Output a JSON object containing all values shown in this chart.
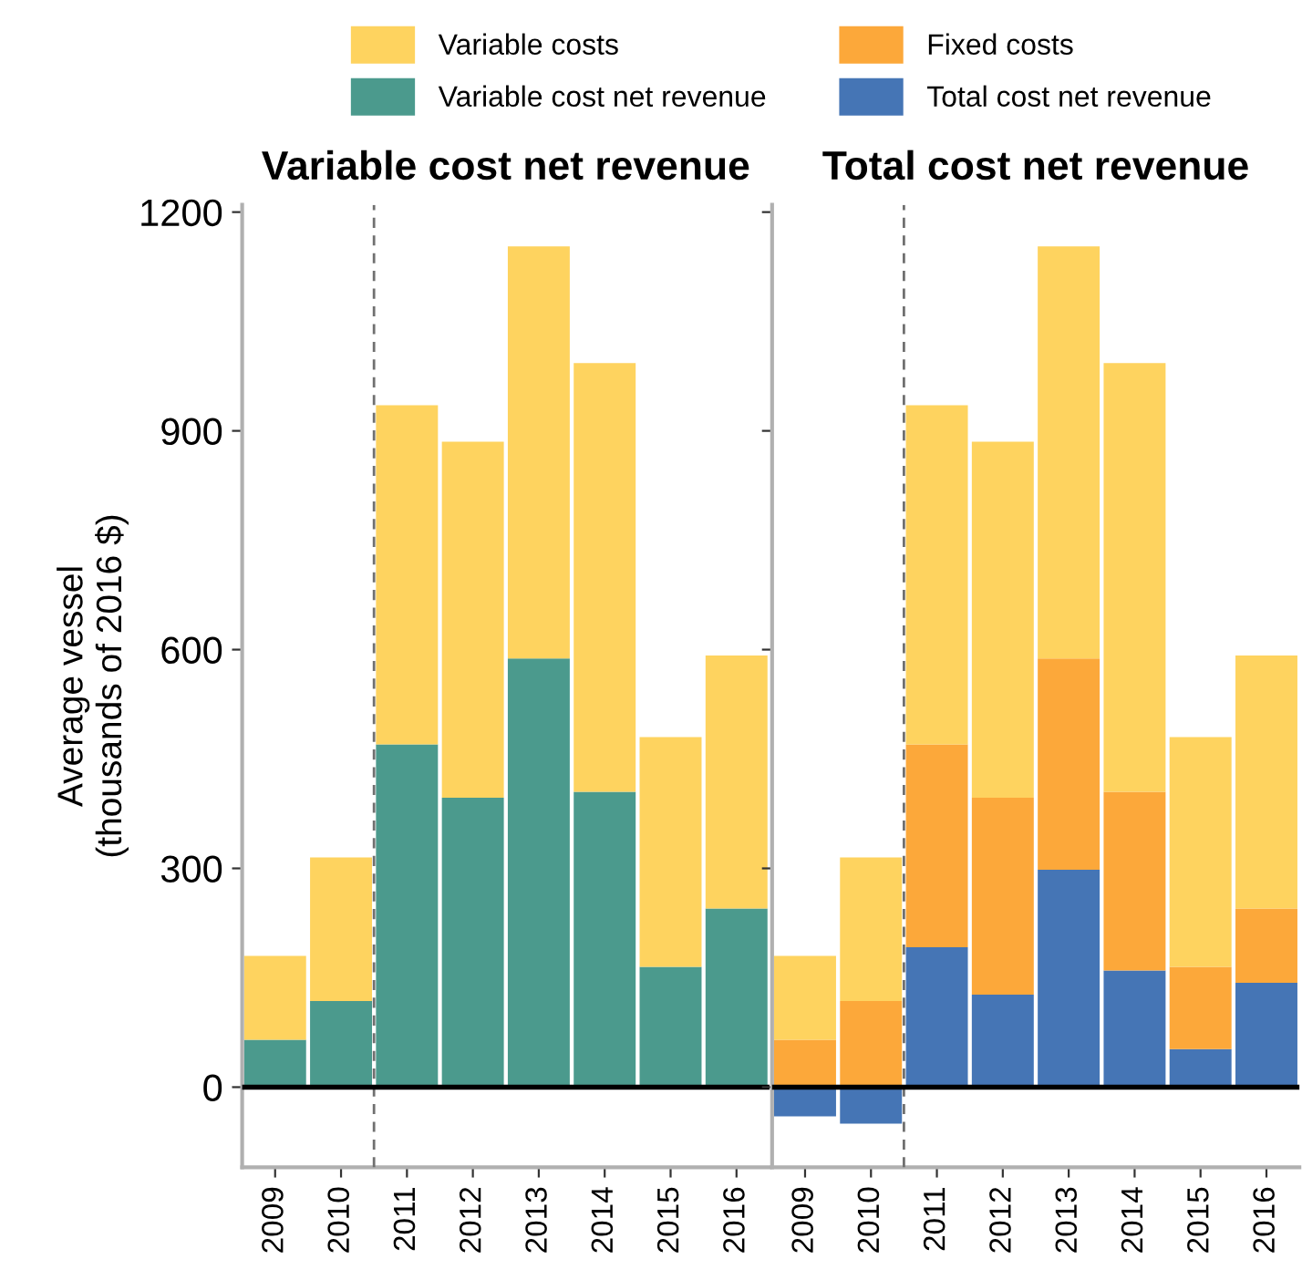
{
  "chart_data": [
    {
      "type": "bar",
      "stacked": true,
      "title": "Variable cost net revenue",
      "ylabel": "Average vessel\n(thousands of 2016 $)",
      "categories": [
        "2009",
        "2010",
        "2011",
        "2012",
        "2013",
        "2014",
        "2015",
        "2016"
      ],
      "series": [
        {
          "name": "Variable cost net revenue",
          "color": "#4b9a8d",
          "values": [
            65,
            118,
            470,
            397,
            588,
            405,
            165,
            245
          ]
        },
        {
          "name": "Variable costs",
          "color": "#fed35f",
          "values": [
            115,
            197,
            465,
            488,
            565,
            588,
            315,
            347
          ]
        }
      ],
      "ylim": [
        -110,
        1210
      ],
      "yticks": [
        0,
        300,
        600,
        900,
        1200
      ],
      "grid": false,
      "legend": "top",
      "ref_lines": [
        {
          "axis": "x",
          "value": "2011",
          "line_style": "dashed",
          "color": "#707070"
        },
        {
          "axis": "y",
          "value": 0,
          "line_style": "solid",
          "color": "#000000"
        }
      ]
    },
    {
      "type": "bar",
      "stacked": true,
      "title": "Total cost net revenue",
      "categories": [
        "2009",
        "2010",
        "2011",
        "2012",
        "2013",
        "2014",
        "2015",
        "2016"
      ],
      "series": [
        {
          "name": "Total cost net revenue",
          "color": "#4575b5",
          "values": [
            -40,
            -50,
            192,
            127,
            298,
            160,
            52,
            143
          ]
        },
        {
          "name": "Fixed costs",
          "color": "#fca83a",
          "values": [
            65,
            118,
            278,
            270,
            290,
            245,
            113,
            102
          ]
        },
        {
          "name": "Variable costs",
          "color": "#fed35f",
          "values": [
            115,
            197,
            465,
            488,
            565,
            588,
            315,
            347
          ]
        }
      ],
      "ylim": [
        -110,
        1210
      ],
      "yticks": [
        0,
        300,
        600,
        900,
        1200
      ],
      "grid": false,
      "legend": "top",
      "tick_labels": "x",
      "ref_lines": [
        {
          "axis": "x",
          "value": "2011",
          "line_style": "dashed",
          "color": "#707070"
        },
        {
          "axis": "y",
          "value": 0,
          "line_style": "solid",
          "color": "#000000"
        }
      ]
    }
  ]
}
